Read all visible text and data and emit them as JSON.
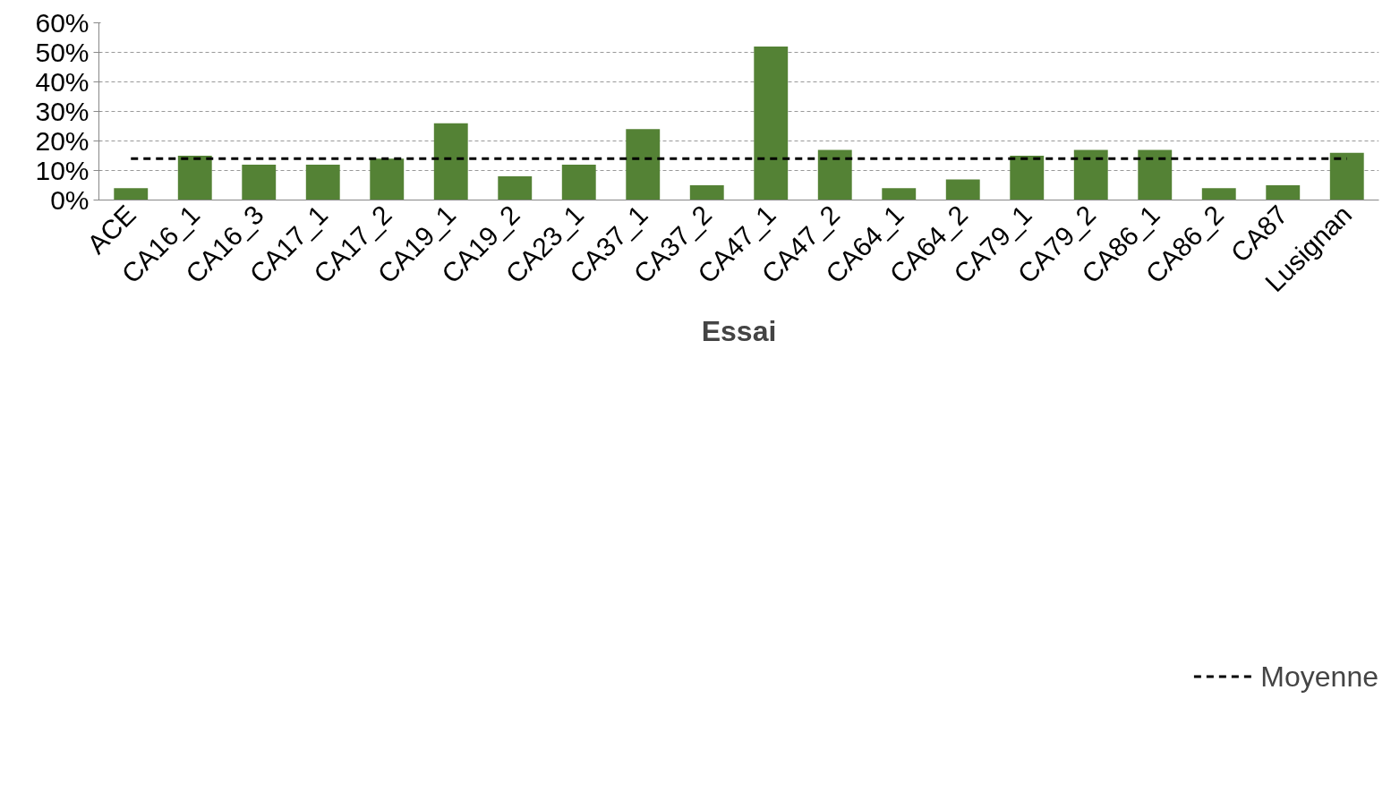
{
  "chart_data": {
    "type": "bar",
    "xlabel": "Essai",
    "categories": [
      "ACE",
      "CA16_1",
      "CA16_3",
      "CA17_1",
      "CA17_2",
      "CA19_1",
      "CA19_2",
      "CA23_1",
      "CA37_1",
      "CA37_2",
      "CA47_1",
      "CA47_2",
      "CA64_1",
      "CA64_2",
      "CA79_1",
      "CA79_2",
      "CA86_1",
      "CA86_2",
      "CA87",
      "Lusignan"
    ],
    "values": [
      4,
      15,
      12,
      12,
      14,
      26,
      8,
      12,
      24,
      5,
      52,
      17,
      4,
      7,
      15,
      17,
      17,
      4,
      5,
      16
    ],
    "color": "#548235",
    "ylim": [
      0,
      60
    ],
    "yticks": [
      {
        "value": 0,
        "label": "0%"
      },
      {
        "value": 10,
        "label": "10%"
      },
      {
        "value": 20,
        "label": "20%"
      },
      {
        "value": 30,
        "label": "30%"
      },
      {
        "value": 40,
        "label": "40%"
      },
      {
        "value": 50,
        "label": "50%"
      },
      {
        "value": 60,
        "label": "60%"
      }
    ],
    "ref_lines": [
      {
        "axis": "y",
        "value": 14,
        "label": "Moyenne",
        "color": "#000000",
        "line_style": "dashed"
      }
    ],
    "grid": "y",
    "legend": "bottom right"
  }
}
